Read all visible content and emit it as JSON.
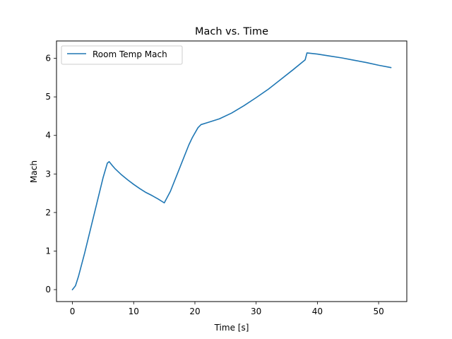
{
  "chart_data": {
    "type": "line",
    "title": "Mach vs. Time",
    "xlabel": "Time [s]",
    "ylabel": "Mach",
    "xlim": [
      -2.6,
      54.6
    ],
    "ylim": [
      -0.31,
      6.45
    ],
    "xticks": [
      0,
      10,
      20,
      30,
      40,
      50
    ],
    "yticks": [
      0,
      1,
      2,
      3,
      4,
      5,
      6
    ],
    "grid": false,
    "legend_position": "upper-left",
    "series": [
      {
        "name": "Room Temp Mach",
        "color": "#1f77b4",
        "x": [
          0,
          0.5,
          1,
          2,
          3,
          4,
          5,
          5.7,
          6,
          6.5,
          7,
          8,
          9,
          10,
          11,
          12,
          13,
          14,
          15,
          16,
          17,
          18,
          19,
          19.6,
          20.5,
          21,
          22,
          24,
          26,
          28,
          30,
          32,
          34,
          36,
          38,
          38.3,
          40,
          42,
          44,
          46,
          48,
          50,
          52
        ],
        "y": [
          0.0,
          0.1,
          0.35,
          0.95,
          1.6,
          2.25,
          2.9,
          3.28,
          3.32,
          3.22,
          3.13,
          2.98,
          2.85,
          2.73,
          2.62,
          2.52,
          2.44,
          2.35,
          2.25,
          2.55,
          2.95,
          3.35,
          3.75,
          3.95,
          4.2,
          4.28,
          4.33,
          4.43,
          4.58,
          4.77,
          4.98,
          5.2,
          5.45,
          5.7,
          5.96,
          6.14,
          6.11,
          6.06,
          6.01,
          5.95,
          5.89,
          5.82,
          5.76
        ]
      }
    ]
  }
}
